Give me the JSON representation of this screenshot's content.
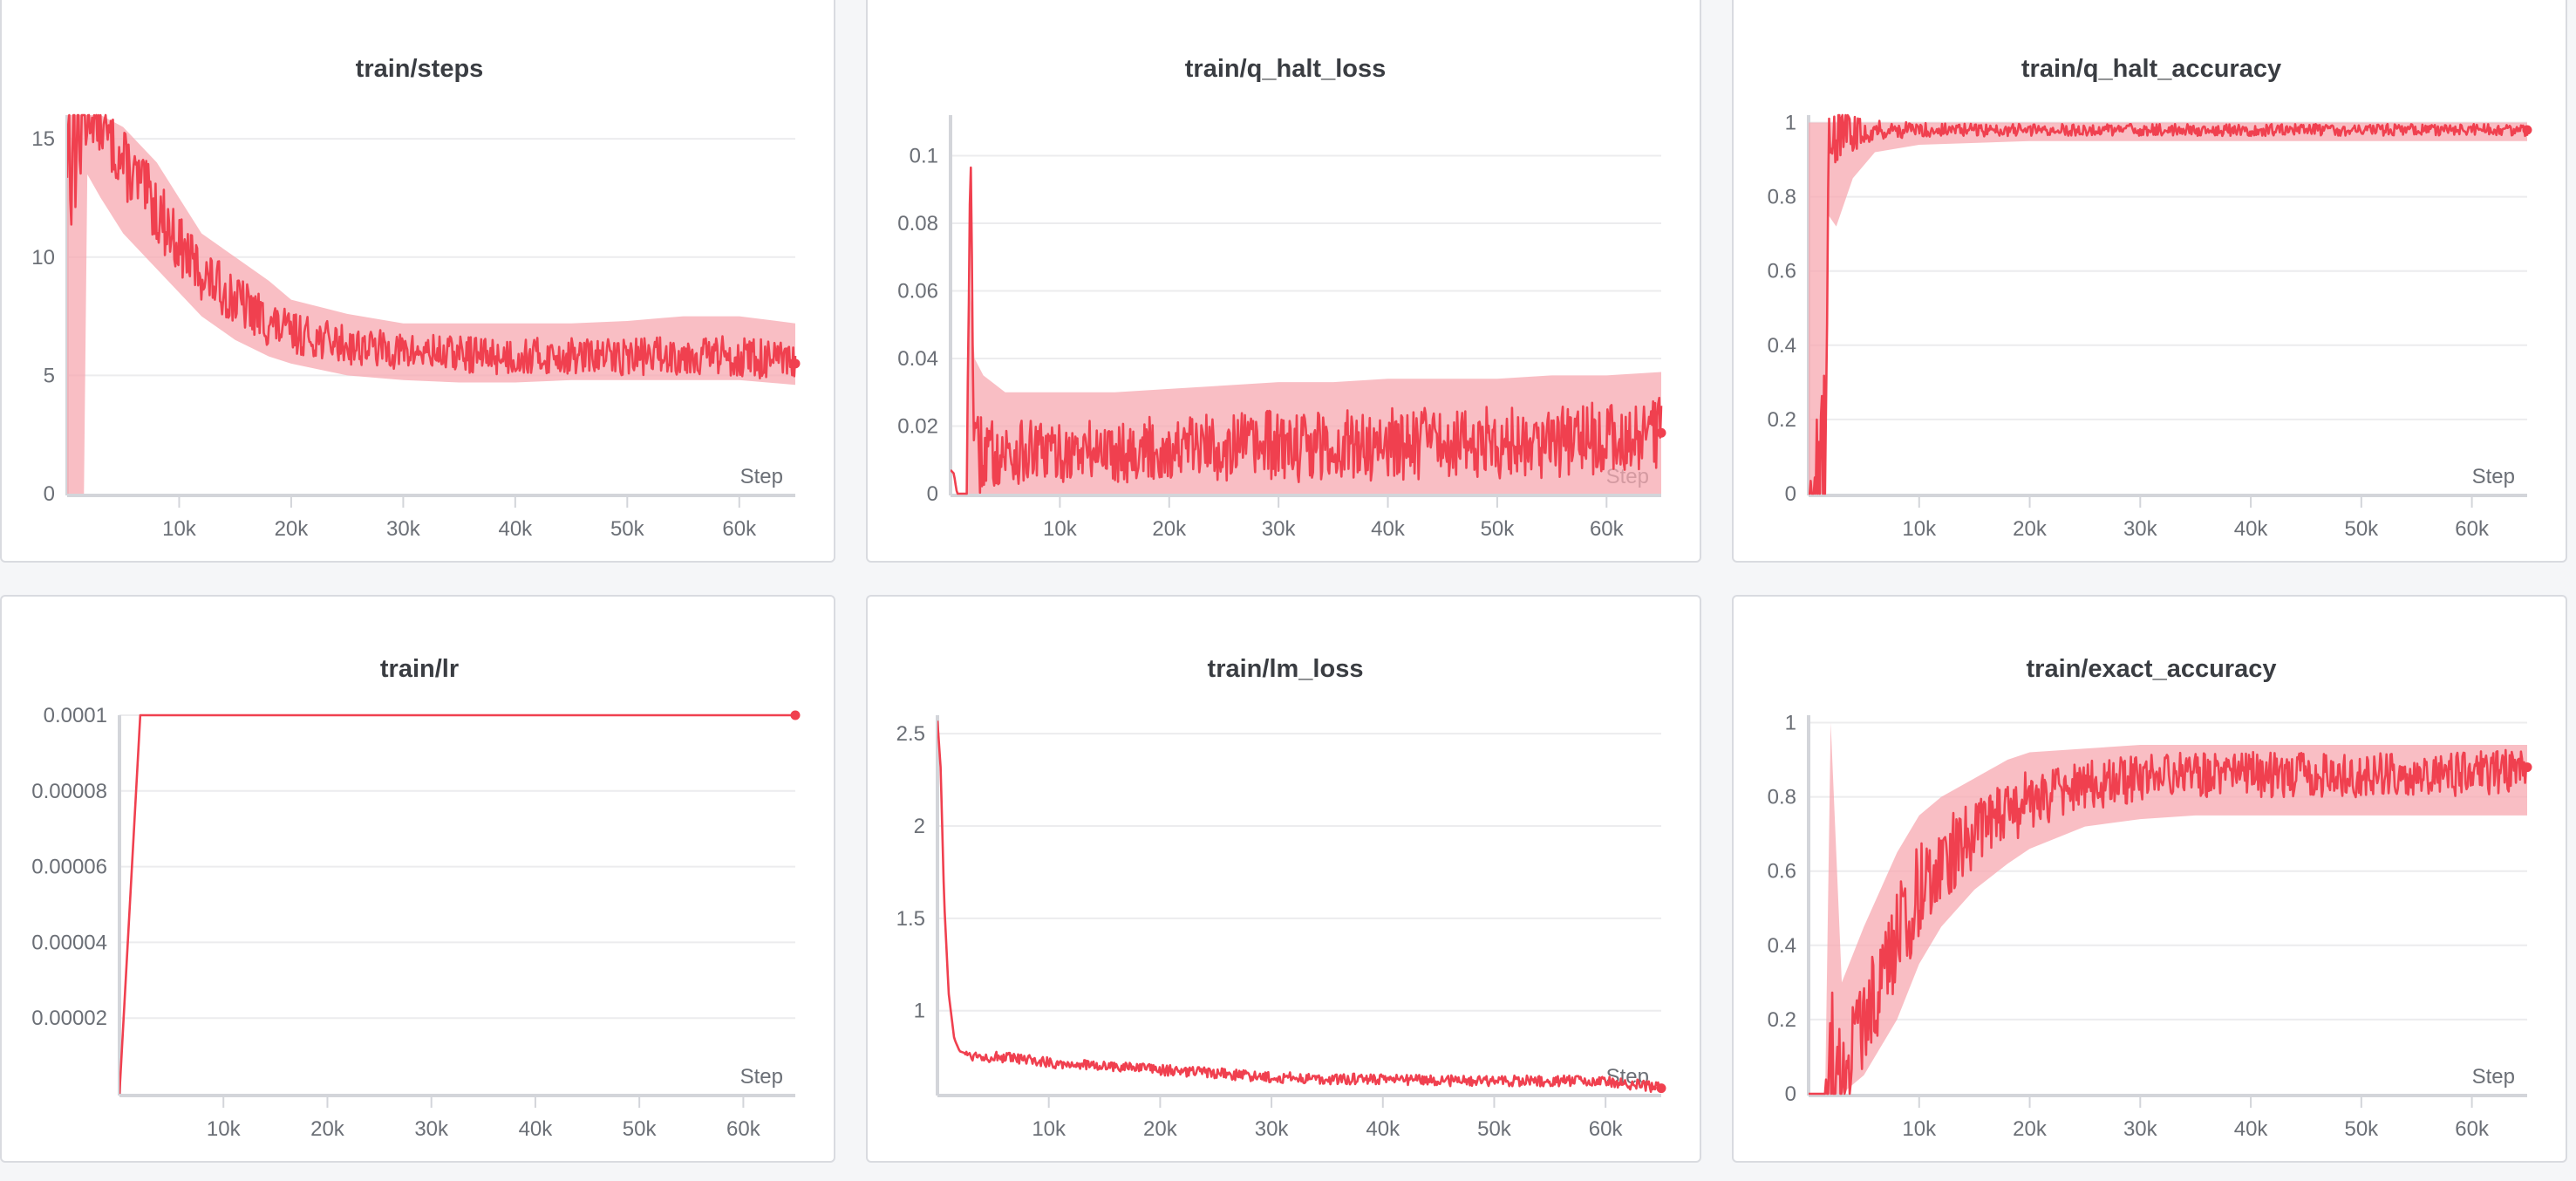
{
  "colors": {
    "line": "#f0404f",
    "band": "#f7a8b0",
    "axis": "#d3d5da",
    "grid": "#ececee"
  },
  "chart_data": [
    {
      "type": "line",
      "title": "train/steps",
      "xlabel": "Step",
      "xlim": [
        0,
        65000
      ],
      "ylim": [
        0,
        16
      ],
      "xticks": [
        10000,
        20000,
        30000,
        40000,
        50000,
        60000
      ],
      "xtick_labels": [
        "10k",
        "20k",
        "30k",
        "40k",
        "50k",
        "60k"
      ],
      "yticks": [
        0,
        5,
        10,
        15
      ],
      "ytick_labels": [
        "0",
        "5",
        "10",
        "15"
      ],
      "series": [
        {
          "x": [
            0,
            1500,
            1800,
            3000,
            5000,
            8000,
            10000,
            12000,
            15000,
            18000,
            20000,
            25000,
            30000,
            35000,
            40000,
            45000,
            50000,
            55000,
            60000,
            65000
          ],
          "y": [
            16,
            16,
            16,
            15.5,
            14,
            12,
            10.5,
            9.3,
            8.2,
            7.2,
            6.8,
            6.3,
            6.0,
            5.9,
            5.8,
            5.8,
            5.8,
            5.9,
            5.8,
            5.5
          ],
          "band_low": [
            0,
            0,
            13.5,
            12.5,
            11,
            9.5,
            8.5,
            7.5,
            6.5,
            5.8,
            5.5,
            5.0,
            4.8,
            4.7,
            4.7,
            4.8,
            4.8,
            4.8,
            4.8,
            4.6
          ],
          "band_high": [
            16,
            16,
            16,
            16,
            15.5,
            14,
            12.5,
            11,
            10,
            9,
            8.2,
            7.6,
            7.2,
            7.2,
            7.2,
            7.2,
            7.3,
            7.5,
            7.5,
            7.2
          ]
        }
      ]
    },
    {
      "type": "line",
      "title": "train/q_halt_loss",
      "xlabel": "Step",
      "xlim": [
        0,
        65000
      ],
      "ylim": [
        0,
        0.112
      ],
      "xticks": [
        10000,
        20000,
        30000,
        40000,
        50000,
        60000
      ],
      "xtick_labels": [
        "10k",
        "20k",
        "30k",
        "40k",
        "50k",
        "60k"
      ],
      "yticks": [
        0,
        0.02,
        0.04,
        0.06,
        0.08,
        0.1
      ],
      "ytick_labels": [
        "0",
        "0.02",
        "0.04",
        "0.06",
        "0.08",
        "0.1"
      ],
      "series": [
        {
          "x": [
            0,
            300,
            600,
            1000,
            1500,
            1800,
            2200,
            3000,
            5000,
            8000,
            10000,
            15000,
            20000,
            25000,
            30000,
            35000,
            40000,
            45000,
            50000,
            55000,
            60000,
            65000
          ],
          "y": [
            0.007,
            0.006,
            0.0,
            0.0,
            0.0,
            0.109,
            0.01,
            0.012,
            0.012,
            0.012,
            0.012,
            0.013,
            0.013,
            0.014,
            0.014,
            0.014,
            0.015,
            0.015,
            0.015,
            0.016,
            0.016,
            0.018
          ],
          "band_low": [
            0.007,
            0.006,
            0.0,
            0.0,
            0.0,
            0.0,
            0.0,
            0.0,
            0.0,
            0.0,
            0.0,
            0.0,
            0.0,
            0.0,
            0.0,
            0.0,
            0.0,
            0.0,
            0.0,
            0.0,
            0.0,
            0.0
          ],
          "band_high": [
            0.007,
            0.006,
            0.0,
            0.0,
            0.0,
            0.06,
            0.04,
            0.035,
            0.03,
            0.03,
            0.03,
            0.03,
            0.031,
            0.032,
            0.033,
            0.033,
            0.034,
            0.034,
            0.034,
            0.035,
            0.035,
            0.036
          ]
        }
      ]
    },
    {
      "type": "line",
      "title": "train/q_halt_accuracy",
      "xlabel": "Step",
      "xlim": [
        0,
        65000
      ],
      "ylim": [
        0,
        1.02
      ],
      "xticks": [
        10000,
        20000,
        30000,
        40000,
        50000,
        60000
      ],
      "xtick_labels": [
        "10k",
        "20k",
        "30k",
        "40k",
        "50k",
        "60k"
      ],
      "yticks": [
        0,
        0.2,
        0.4,
        0.6,
        0.8,
        1
      ],
      "ytick_labels": [
        "0",
        "0.2",
        "0.4",
        "0.6",
        "0.8",
        "1"
      ],
      "series": [
        {
          "x": [
            0,
            1500,
            1800,
            2500,
            4000,
            6000,
            10000,
            20000,
            30000,
            40000,
            50000,
            60000,
            65000
          ],
          "y": [
            0,
            0,
            1.0,
            0.97,
            0.97,
            0.98,
            0.98,
            0.98,
            0.98,
            0.98,
            0.98,
            0.98,
            0.98
          ],
          "band_low": [
            0,
            0,
            0.75,
            0.72,
            0.85,
            0.92,
            0.94,
            0.95,
            0.95,
            0.95,
            0.95,
            0.95,
            0.95
          ],
          "band_high": [
            1,
            1,
            1,
            1,
            1,
            1,
            1,
            1,
            1,
            1,
            1,
            1,
            1
          ]
        }
      ]
    },
    {
      "type": "line",
      "title": "train/lr",
      "xlabel": "Step",
      "xlim": [
        0,
        65000
      ],
      "ylim": [
        0,
        0.0001
      ],
      "xticks": [
        10000,
        20000,
        30000,
        40000,
        50000,
        60000
      ],
      "xtick_labels": [
        "10k",
        "20k",
        "30k",
        "40k",
        "50k",
        "60k"
      ],
      "yticks": [
        2e-05,
        4e-05,
        6e-05,
        8e-05,
        0.0001
      ],
      "ytick_labels": [
        "0.00002",
        "0.00004",
        "0.00006",
        "0.00008",
        "0.0001"
      ],
      "series": [
        {
          "x": [
            0,
            2000,
            65000
          ],
          "y": [
            0,
            0.0001,
            0.0001
          ]
        }
      ]
    },
    {
      "type": "line",
      "title": "train/lm_loss",
      "xlabel": "Step",
      "xlim": [
        0,
        65000
      ],
      "ylim": [
        0.55,
        2.6
      ],
      "xticks": [
        10000,
        20000,
        30000,
        40000,
        50000,
        60000
      ],
      "xtick_labels": [
        "10k",
        "20k",
        "30k",
        "40k",
        "50k",
        "60k"
      ],
      "yticks": [
        1,
        1.5,
        2,
        2.5
      ],
      "ytick_labels": [
        "1",
        "1.5",
        "2",
        "2.5"
      ],
      "series": [
        {
          "x": [
            0,
            300,
            600,
            1000,
            1500,
            2000,
            3000,
            5000,
            10000,
            15000,
            20000,
            25000,
            30000,
            35000,
            40000,
            45000,
            50000,
            55000,
            60000,
            65000
          ],
          "y": [
            2.57,
            2.3,
            1.6,
            1.1,
            0.85,
            0.78,
            0.76,
            0.75,
            0.72,
            0.7,
            0.68,
            0.66,
            0.64,
            0.63,
            0.63,
            0.62,
            0.62,
            0.62,
            0.62,
            0.58
          ]
        }
      ]
    },
    {
      "type": "line",
      "title": "train/exact_accuracy",
      "xlabel": "Step",
      "xlim": [
        0,
        65000
      ],
      "ylim": [
        0,
        1.02
      ],
      "xticks": [
        10000,
        20000,
        30000,
        40000,
        50000,
        60000
      ],
      "xtick_labels": [
        "10k",
        "20k",
        "30k",
        "40k",
        "50k",
        "60k"
      ],
      "yticks": [
        0,
        0.2,
        0.4,
        0.6,
        0.8,
        1
      ],
      "ytick_labels": [
        "0",
        "0.2",
        "0.4",
        "0.6",
        "0.8",
        "1"
      ],
      "series": [
        {
          "x": [
            0,
            1500,
            2000,
            3000,
            5000,
            8000,
            10000,
            12000,
            15000,
            18000,
            20000,
            25000,
            30000,
            35000,
            40000,
            45000,
            50000,
            55000,
            60000,
            65000
          ],
          "y": [
            0,
            0,
            0,
            0.05,
            0.2,
            0.42,
            0.55,
            0.63,
            0.7,
            0.76,
            0.79,
            0.83,
            0.85,
            0.86,
            0.86,
            0.86,
            0.86,
            0.86,
            0.86,
            0.88
          ],
          "band_low": [
            0,
            0,
            0,
            0,
            0.05,
            0.2,
            0.35,
            0.45,
            0.55,
            0.62,
            0.66,
            0.72,
            0.74,
            0.75,
            0.75,
            0.75,
            0.75,
            0.75,
            0.75,
            0.75
          ],
          "band_high": [
            0,
            0,
            1,
            0.3,
            0.45,
            0.65,
            0.75,
            0.8,
            0.85,
            0.9,
            0.92,
            0.93,
            0.94,
            0.94,
            0.94,
            0.94,
            0.94,
            0.94,
            0.94,
            0.94
          ]
        }
      ]
    }
  ]
}
